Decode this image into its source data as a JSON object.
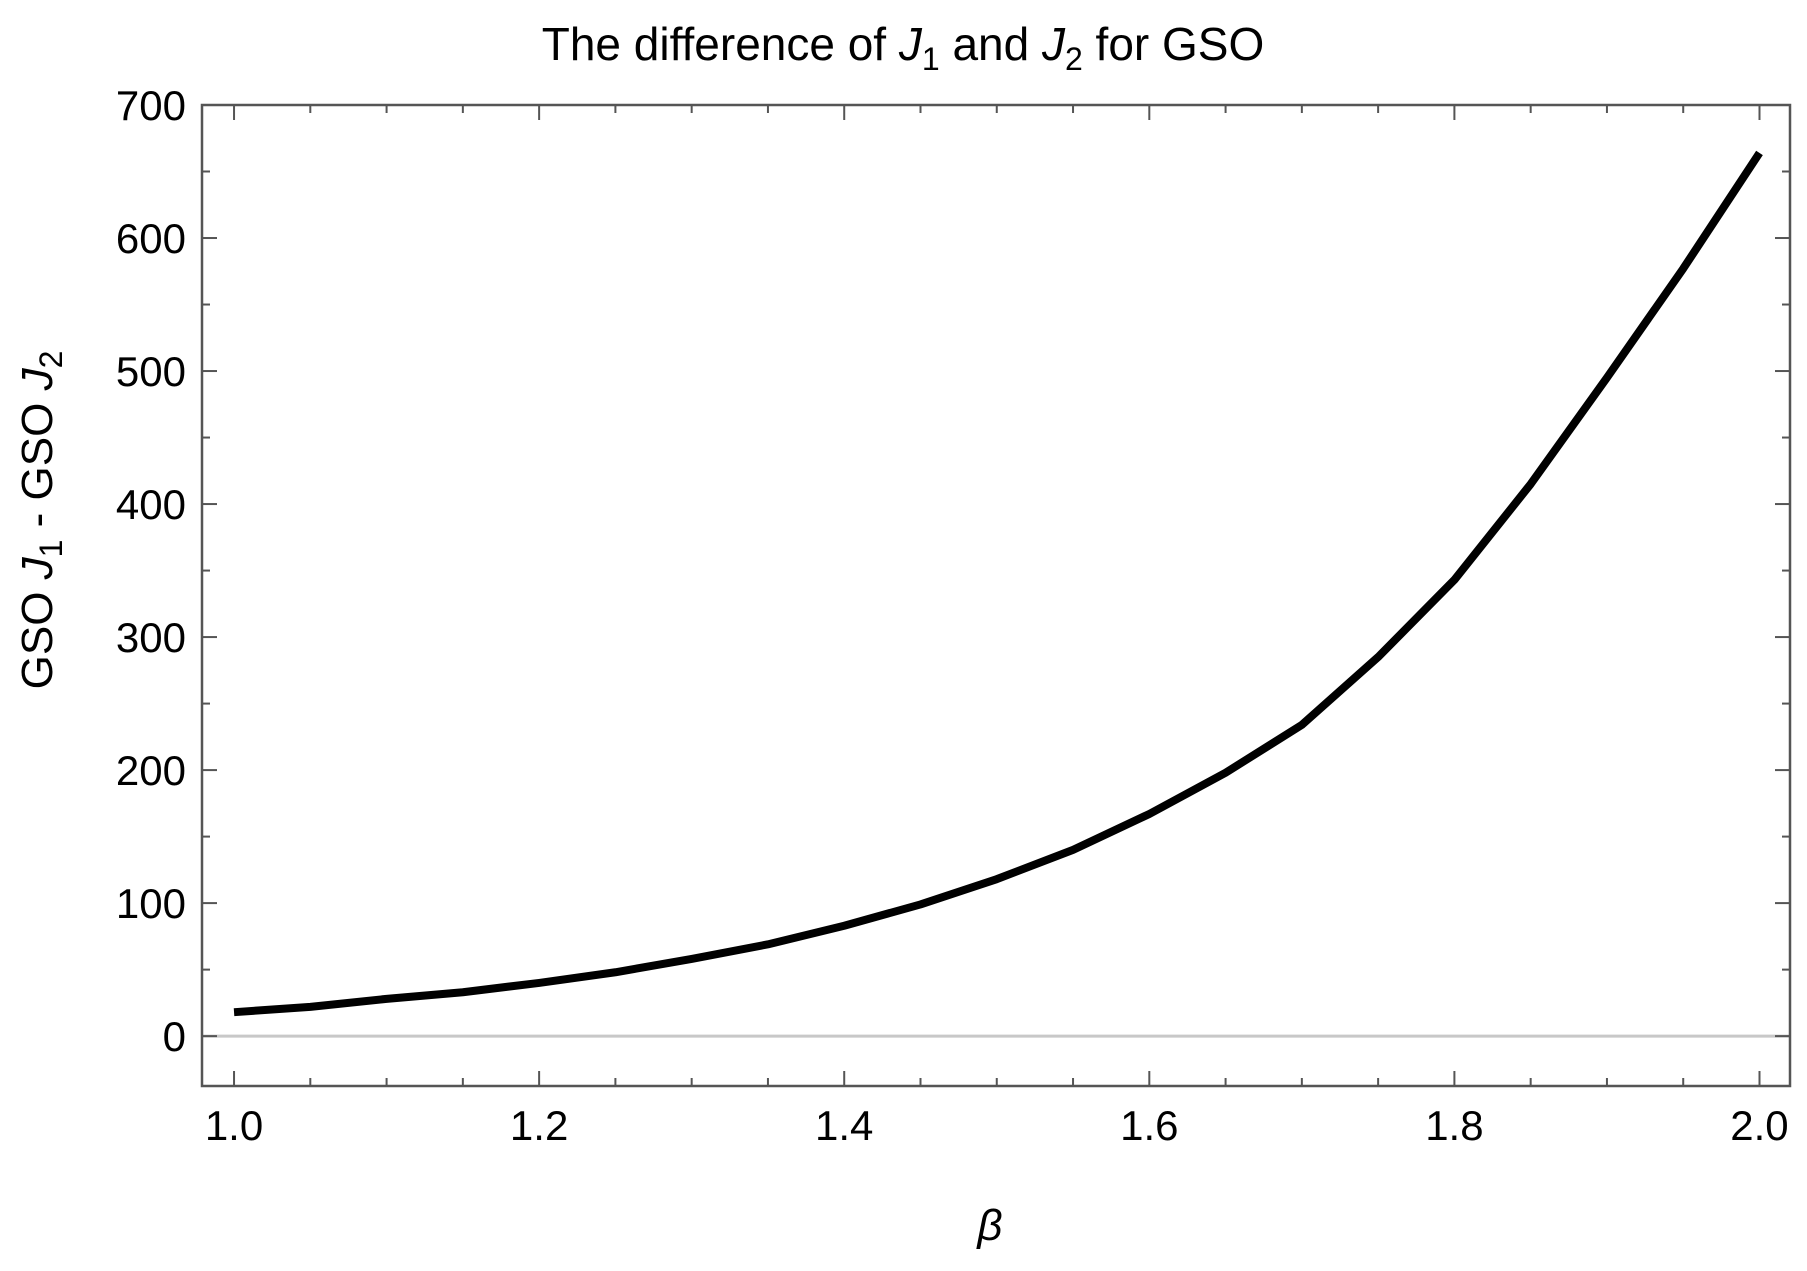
{
  "chart_data": {
    "type": "line",
    "title": "The difference of J1 and J2 for GSO",
    "title_parts": {
      "before_j1": "The difference of ",
      "j1_symbol": "J",
      "j1_subscript": "1",
      "between": " and ",
      "j2_symbol": "J",
      "j2_subscript": "2",
      "after_j2": " for GSO"
    },
    "xlabel": "β",
    "ylabel": "GSO J1 - GSO J2",
    "ylabel_parts": {
      "prefix_1": "GSO ",
      "j1_symbol": "J",
      "j1_subscript": "1",
      "minus": " - GSO ",
      "j2_symbol": "J",
      "j2_subscript": "2"
    },
    "xlim": [
      0.979,
      2.02
    ],
    "ylim": [
      -37.5,
      700
    ],
    "xticks": [
      "1.0",
      "1.2",
      "1.4",
      "1.6",
      "1.8",
      "2.0"
    ],
    "xtick_values": [
      1.0,
      1.2,
      1.4,
      1.6,
      1.8,
      2.0
    ],
    "yticks": [
      "0",
      "100",
      "200",
      "300",
      "400",
      "500",
      "600",
      "700"
    ],
    "ytick_values": [
      0,
      100,
      200,
      300,
      400,
      500,
      600,
      700
    ],
    "baseline": 0,
    "grid": false,
    "line_color": "#000000",
    "baseline_color": "#c8c8c8",
    "frame_color": "#555555",
    "series": [
      {
        "x": [
          1.0,
          1.05,
          1.1,
          1.15,
          1.2,
          1.25,
          1.3,
          1.35,
          1.4,
          1.45,
          1.5,
          1.55,
          1.6,
          1.65,
          1.7,
          1.75,
          1.8,
          1.85,
          1.9,
          1.95,
          2.0
        ],
        "y": [
          18,
          22,
          28,
          33,
          40,
          48,
          58,
          69,
          83,
          99,
          118,
          140,
          167,
          198,
          234,
          285,
          343,
          415,
          495,
          577,
          664
        ]
      }
    ]
  }
}
